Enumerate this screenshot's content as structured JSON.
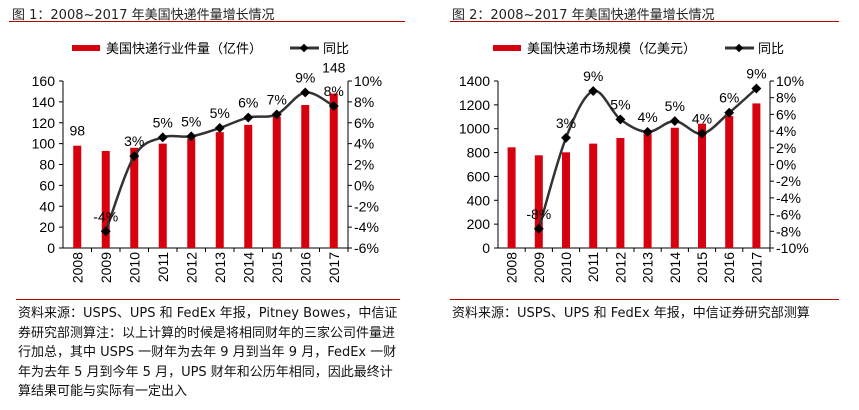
{
  "figures": [
    {
      "title": "图 1：2008~2017 年美国快递件量增长情况",
      "note": "资料来源：USPS、UPS 和 FedEx 年报，Pitney Bowes，中信证券研究部测算注：以上计算的时候是将相同财年的三家公司件量进行加总，其中 USPS 一财年为去年 9 月到当年 9 月，FedEx 一财年为去年 5 月到今年 5 月，UPS 财年和公历年相同，因此最终计算结果可能与实际有一定出入"
    },
    {
      "title": "图 2：2008~2017 年美国快递件量增长情况",
      "note": "资料来源：USPS、UPS 和 FedEx 年报，中信证券研究部测算"
    }
  ],
  "chart_data": [
    {
      "type": "bar+line",
      "categories": [
        "2008",
        "2009",
        "2010",
        "2011",
        "2012",
        "2013",
        "2014",
        "2015",
        "2016",
        "2017"
      ],
      "series": [
        {
          "name": "美国快递行业件量（亿件）",
          "type": "bar",
          "axis": "left",
          "color": "#d7000f",
          "values": [
            98,
            93,
            96,
            100,
            105,
            111,
            118,
            126,
            137,
            148
          ]
        },
        {
          "name": "同比",
          "type": "line",
          "axis": "right",
          "color": "#333333",
          "values": [
            null,
            -4.4,
            2.8,
            4.6,
            4.7,
            5.5,
            6.5,
            6.8,
            8.9,
            7.6
          ]
        }
      ],
      "bar_labels": [
        "98",
        "",
        "",
        "",
        "",
        "",
        "",
        "",
        "",
        "148"
      ],
      "line_labels": [
        "",
        "-4%",
        "3%",
        "5%",
        "5%",
        "5%",
        "6%",
        "7%",
        "9%",
        "8%"
      ],
      "left_axis": {
        "min": 0,
        "max": 160,
        "step": 20,
        "ticks": [
          "0",
          "20",
          "40",
          "60",
          "80",
          "100",
          "120",
          "140",
          "160"
        ]
      },
      "right_axis": {
        "min": -6,
        "max": 10,
        "step": 2,
        "ticks": [
          "-6%",
          "-4%",
          "-2%",
          "0%",
          "2%",
          "4%",
          "6%",
          "8%",
          "10%"
        ]
      },
      "legend_position": "top",
      "grid": false
    },
    {
      "type": "bar+line",
      "categories": [
        "2008",
        "2009",
        "2010",
        "2011",
        "2012",
        "2013",
        "2014",
        "2015",
        "2016",
        "2017"
      ],
      "series": [
        {
          "name": "美国快递市场规模（亿美元）",
          "type": "bar",
          "axis": "left",
          "color": "#d7000f",
          "values": [
            844,
            777,
            802,
            875,
            922,
            961,
            1008,
            1042,
            1106,
            1212
          ]
        },
        {
          "name": "同比",
          "type": "line",
          "axis": "right",
          "color": "#333333",
          "values": [
            null,
            -7.7,
            3.2,
            8.8,
            5.4,
            3.9,
            5.2,
            3.7,
            6.2,
            9.1
          ]
        }
      ],
      "bar_labels": [
        "",
        "",
        "",
        "",
        "",
        "",
        "",
        "",
        "",
        ""
      ],
      "line_labels": [
        "",
        "-8%",
        "3%",
        "9%",
        "5%",
        "4%",
        "5%",
        "4%",
        "6%",
        "9%"
      ],
      "left_axis": {
        "min": 0,
        "max": 1400,
        "step": 200,
        "ticks": [
          "0",
          "200",
          "400",
          "600",
          "800",
          "1000",
          "1200",
          "1400"
        ]
      },
      "right_axis": {
        "min": -10,
        "max": 10,
        "step": 2,
        "ticks": [
          "-10%",
          "-8%",
          "-6%",
          "-4%",
          "-2%",
          "0%",
          "2%",
          "4%",
          "6%",
          "8%",
          "10%"
        ]
      },
      "legend_position": "top",
      "grid": false
    }
  ]
}
